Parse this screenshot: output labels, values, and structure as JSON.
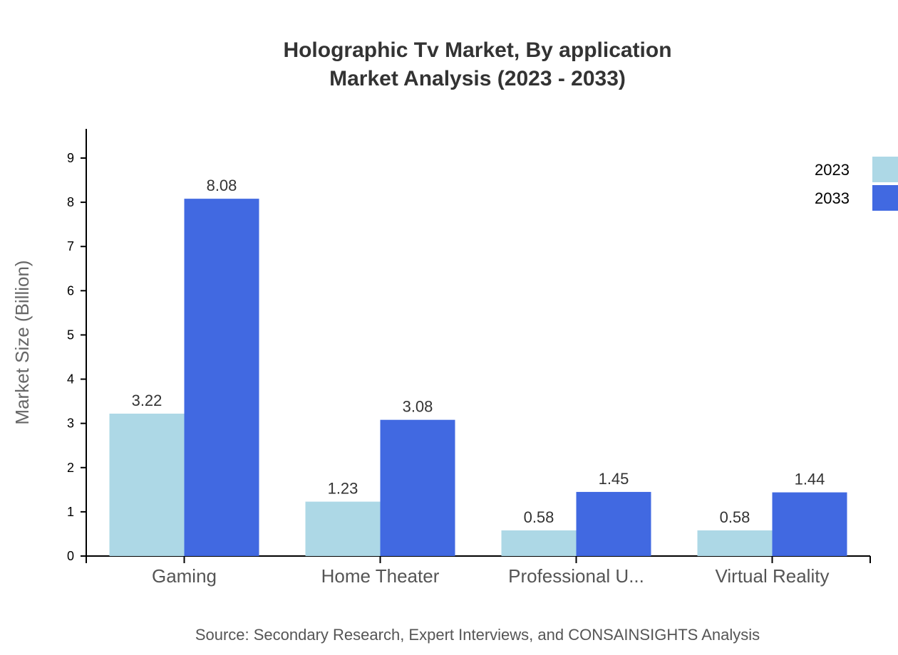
{
  "chart_data": {
    "type": "bar",
    "title_lines": [
      "Holographic Tv Market, By application",
      "Market Analysis (2023 - 2033)"
    ],
    "ylabel": "Market Size (Billion)",
    "xlabel": "",
    "categories": [
      "Gaming",
      "Home Theater",
      "Professional U...",
      "Virtual Reality"
    ],
    "series": [
      {
        "name": "2023",
        "color": "#add8e6",
        "values": [
          3.22,
          1.23,
          0.58,
          0.58
        ]
      },
      {
        "name": "2033",
        "color": "#4169e1",
        "values": [
          8.08,
          3.08,
          1.45,
          1.44
        ]
      }
    ],
    "ylim": [
      0,
      9.66
    ],
    "yticks": [
      0,
      1,
      2,
      3,
      4,
      5,
      6,
      7,
      8,
      9
    ],
    "legend_position": "top-right",
    "grid": false
  },
  "source_text": "Source: Secondary Research, Expert Interviews, and CONSAINSIGHTS Analysis"
}
